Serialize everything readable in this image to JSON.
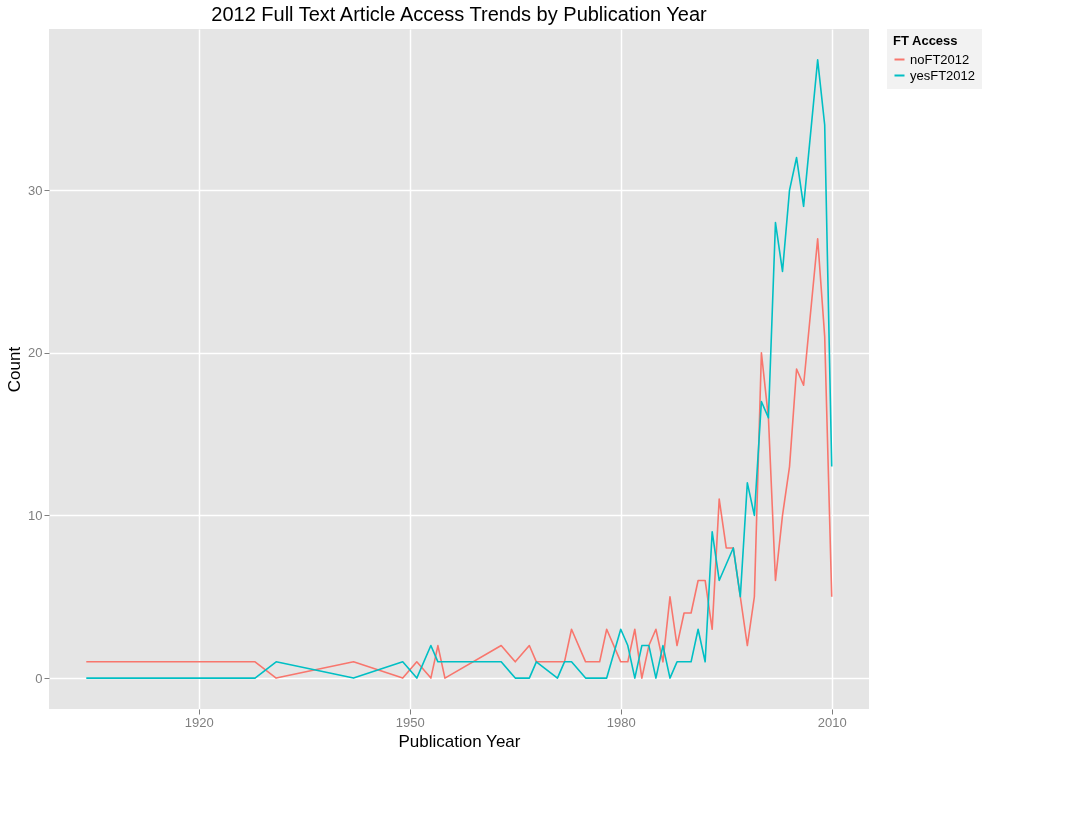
{
  "chart_data": {
    "type": "line",
    "title": "2012 Full Text Article Access Trends by Publication Year",
    "xlabel": "Publication Year",
    "ylabel": "Count",
    "legend_title": "FT Access",
    "xlim": [
      1898.7,
      2015.3
    ],
    "xticks": [
      1920,
      1950,
      1980,
      2010
    ],
    "ylim": [
      -1.9,
      39.9
    ],
    "yticks": [
      0,
      10,
      20,
      30
    ],
    "grid": true,
    "legend": "right",
    "line_style": "solid",
    "series": [
      {
        "name": "noFT2012",
        "color": "#f8766d",
        "x": [
          1904,
          1928,
          1931,
          1942,
          1949,
          1951,
          1953,
          1954,
          1955,
          1963,
          1965,
          1967,
          1968,
          1972,
          1973,
          1975,
          1977,
          1978,
          1980,
          1981,
          1982,
          1983,
          1984,
          1985,
          1986,
          1987,
          1988,
          1989,
          1990,
          1991,
          1992,
          1993,
          1994,
          1995,
          1996,
          1997,
          1998,
          1999,
          2000,
          2001,
          2002,
          2003,
          2004,
          2005,
          2006,
          2008,
          2009,
          2010
        ],
        "values": [
          1,
          1,
          0,
          1,
          0,
          1,
          0,
          2,
          0,
          2,
          1,
          2,
          1,
          1,
          3,
          1,
          1,
          3,
          1,
          1,
          3,
          0,
          2,
          3,
          1,
          5,
          2,
          4,
          4,
          6,
          6,
          3,
          11,
          8,
          8,
          5,
          2,
          5,
          20,
          16,
          6,
          10,
          13,
          19,
          18,
          27,
          21,
          5
        ]
      },
      {
        "name": "yesFT2012",
        "color": "#00bfc4",
        "x": [
          1904,
          1928,
          1931,
          1942,
          1949,
          1951,
          1953,
          1954,
          1963,
          1965,
          1967,
          1968,
          1971,
          1972,
          1973,
          1975,
          1978,
          1980,
          1981,
          1982,
          1983,
          1984,
          1985,
          1986,
          1987,
          1988,
          1990,
          1991,
          1992,
          1993,
          1994,
          1996,
          1997,
          1998,
          1999,
          2000,
          2001,
          2002,
          2003,
          2004,
          2005,
          2006,
          2008,
          2009,
          2010
        ],
        "values": [
          0,
          0,
          1,
          0,
          1,
          0,
          2,
          1,
          1,
          0,
          0,
          1,
          0,
          1,
          1,
          0,
          0,
          3,
          2,
          0,
          2,
          2,
          0,
          2,
          0,
          1,
          1,
          3,
          1,
          9,
          6,
          8,
          5,
          12,
          10,
          17,
          16,
          28,
          25,
          30,
          32,
          29,
          38,
          34,
          13
        ]
      }
    ]
  }
}
